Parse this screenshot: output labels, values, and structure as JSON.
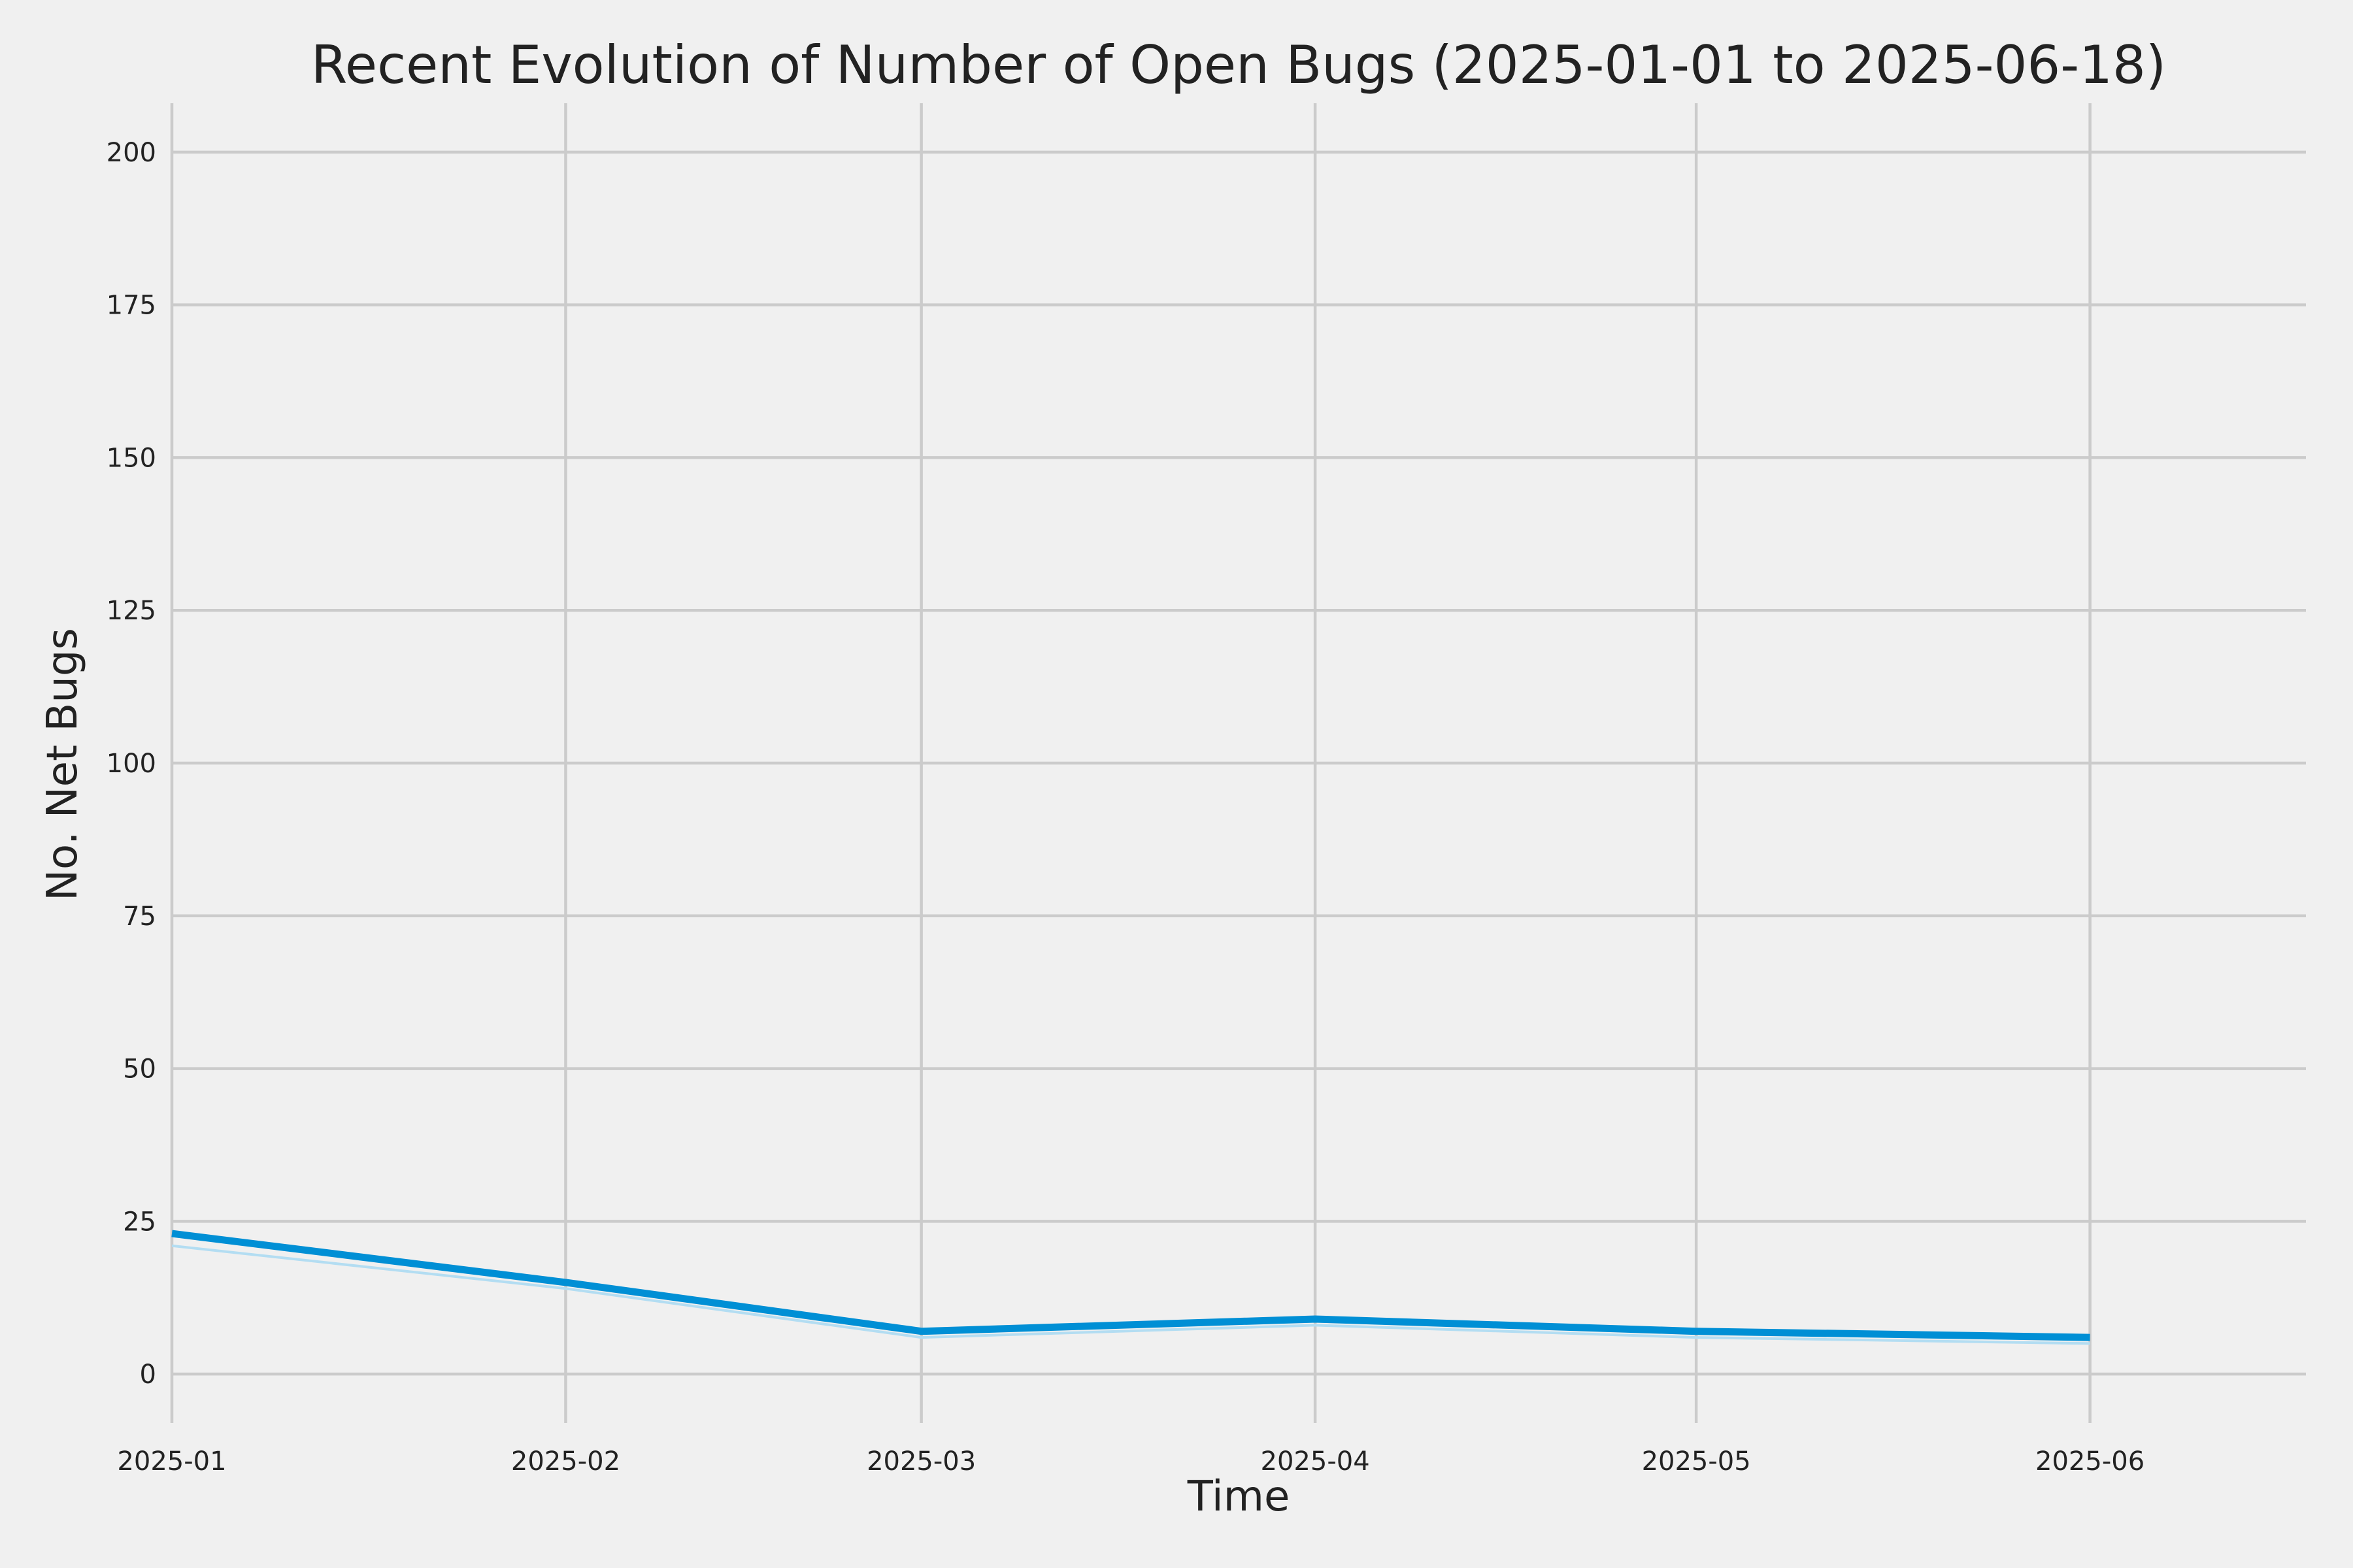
{
  "chart_data": {
    "type": "line",
    "title": "Recent Evolution of Number of Open Bugs (2025-01-01 to 2025-06-18)",
    "xlabel": "Time",
    "ylabel": "No. Net Bugs",
    "x_tick_labels": [
      "2025-01",
      "2025-02",
      "2025-03",
      "2025-04",
      "2025-05",
      "2025-06"
    ],
    "y_ticks": [
      0,
      25,
      50,
      75,
      100,
      125,
      150,
      175,
      200
    ],
    "ylim": [
      -8,
      208
    ],
    "xlim": [
      "2025-01-01",
      "2025-06-18"
    ],
    "grid": true,
    "series": [
      {
        "x": [
          "2025-01-01",
          "2025-02-01",
          "2025-03-01",
          "2025-04-01",
          "2025-05-01",
          "2025-06-01"
        ],
        "values": [
          23,
          15,
          7,
          9,
          7,
          6
        ],
        "color": "#008fd5",
        "style": "solid"
      },
      {
        "x": [
          "2025-01-01",
          "2025-02-01",
          "2025-03-01",
          "2025-04-01",
          "2025-05-01",
          "2025-06-01"
        ],
        "values": [
          21,
          14,
          6,
          8,
          6,
          5
        ],
        "color": "#b3ddf2",
        "style": "faint"
      }
    ]
  }
}
